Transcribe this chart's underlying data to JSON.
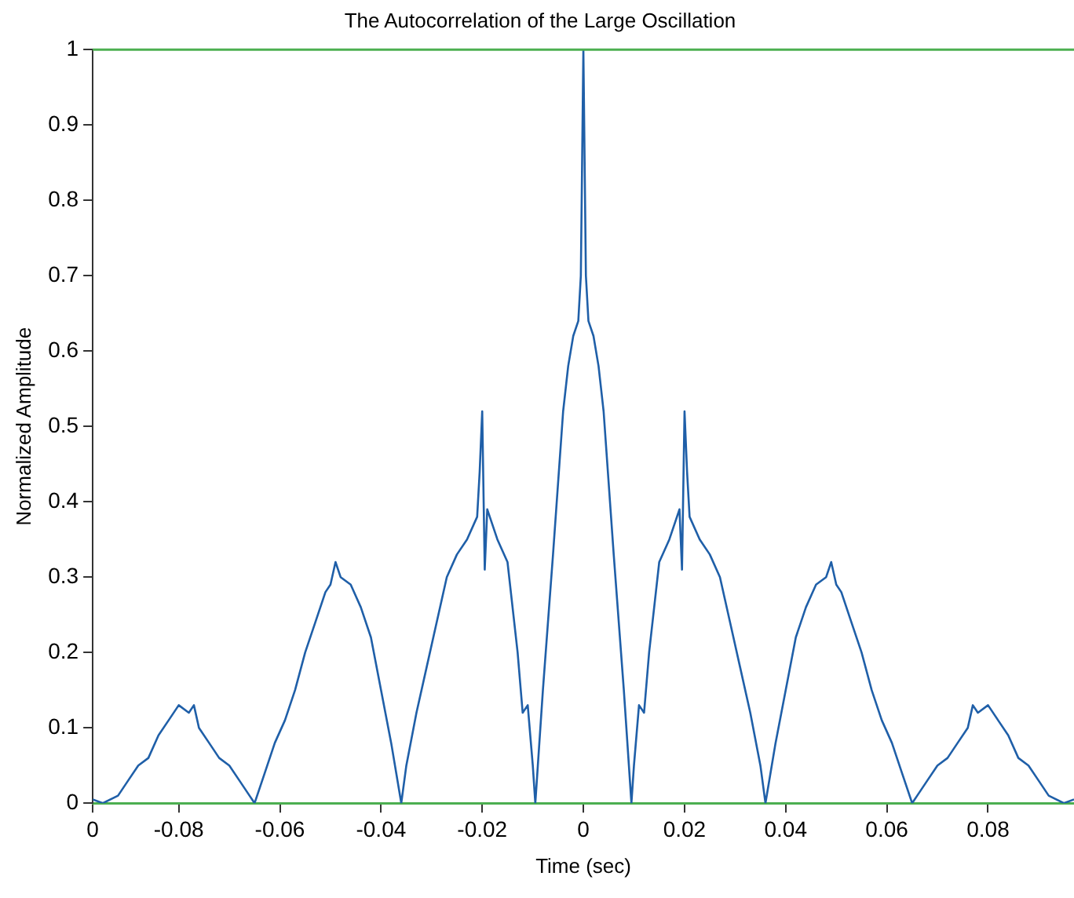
{
  "chart_data": {
    "type": "line",
    "title": "The Autocorrelation of the Large Oscillation",
    "xlabel": "Time (sec)",
    "ylabel": "Normalized Amplitude",
    "x": [
      -0.097,
      -0.095,
      -0.092,
      -0.09,
      -0.088,
      -0.086,
      -0.084,
      -0.082,
      -0.08,
      -0.078,
      -0.077,
      -0.076,
      -0.074,
      -0.072,
      -0.07,
      -0.068,
      -0.066,
      -0.065,
      -0.063,
      -0.061,
      -0.059,
      -0.057,
      -0.055,
      -0.053,
      -0.051,
      -0.05,
      -0.049,
      -0.048,
      -0.046,
      -0.044,
      -0.042,
      -0.04,
      -0.038,
      -0.037,
      -0.036,
      -0.035,
      -0.033,
      -0.031,
      -0.029,
      -0.027,
      -0.025,
      -0.023,
      -0.021,
      -0.0205,
      -0.02,
      -0.0195,
      -0.019,
      -0.017,
      -0.015,
      -0.014,
      -0.013,
      -0.012,
      -0.011,
      -0.01,
      -0.0095,
      -0.009,
      -0.008,
      -0.006,
      -0.004,
      -0.003,
      -0.002,
      -0.001,
      -0.0005,
      0,
      0.0005,
      0.001,
      0.002,
      0.003,
      0.004,
      0.006,
      0.008,
      0.009,
      0.0095,
      0.01,
      0.011,
      0.012,
      0.013,
      0.014,
      0.015,
      0.017,
      0.019,
      0.0195,
      0.02,
      0.0205,
      0.021,
      0.023,
      0.025,
      0.027,
      0.029,
      0.031,
      0.033,
      0.035,
      0.036,
      0.037,
      0.038,
      0.04,
      0.042,
      0.044,
      0.046,
      0.048,
      0.049,
      0.05,
      0.051,
      0.053,
      0.055,
      0.057,
      0.059,
      0.061,
      0.063,
      0.065,
      0.066,
      0.068,
      0.07,
      0.072,
      0.074,
      0.076,
      0.077,
      0.078,
      0.08,
      0.082,
      0.084,
      0.086,
      0.088,
      0.09,
      0.092,
      0.095,
      0.097
    ],
    "series": [
      {
        "color": "#1f5fa8",
        "values": [
          0.005,
          0,
          0.01,
          0.03,
          0.05,
          0.06,
          0.09,
          0.11,
          0.13,
          0.12,
          0.13,
          0.1,
          0.08,
          0.06,
          0.05,
          0.03,
          0.01,
          0,
          0.04,
          0.08,
          0.11,
          0.15,
          0.2,
          0.24,
          0.28,
          0.29,
          0.32,
          0.3,
          0.29,
          0.26,
          0.22,
          0.15,
          0.08,
          0.04,
          0,
          0.05,
          0.12,
          0.18,
          0.24,
          0.3,
          0.33,
          0.35,
          0.38,
          0.44,
          0.52,
          0.31,
          0.39,
          0.35,
          0.32,
          0.26,
          0.2,
          0.12,
          0.13,
          0.05,
          0,
          0.05,
          0.15,
          0.33,
          0.52,
          0.58,
          0.62,
          0.64,
          0.7,
          1,
          0.7,
          0.64,
          0.62,
          0.58,
          0.52,
          0.33,
          0.15,
          0.05,
          0,
          0.05,
          0.13,
          0.12,
          0.2,
          0.26,
          0.32,
          0.35,
          0.39,
          0.31,
          0.52,
          0.44,
          0.38,
          0.35,
          0.33,
          0.3,
          0.24,
          0.18,
          0.12,
          0.05,
          0,
          0.04,
          0.08,
          0.15,
          0.22,
          0.26,
          0.29,
          0.3,
          0.32,
          0.29,
          0.28,
          0.24,
          0.2,
          0.15,
          0.11,
          0.08,
          0.04,
          0,
          0.01,
          0.03,
          0.05,
          0.06,
          0.08,
          0.1,
          0.13,
          0.12,
          0.13,
          0.11,
          0.09,
          0.06,
          0.05,
          0.03,
          0.01,
          0,
          0.005
        ]
      }
    ],
    "xlim": [
      -0.097,
      0.097
    ],
    "xticks": [
      {
        "value": -0.097,
        "label": "0"
      },
      -0.08,
      -0.06,
      -0.04,
      -0.02,
      0,
      0.02,
      0.04,
      0.06,
      0.08
    ],
    "ylim": [
      0,
      1
    ],
    "yticks": [
      0,
      0.1,
      0.2,
      0.3,
      0.4,
      0.5,
      0.6,
      0.7,
      0.8,
      0.9,
      1
    ],
    "ref_lines": [
      {
        "axis": "y",
        "value": 1,
        "color": "#4caf50"
      }
    ],
    "grid": false,
    "legend": false,
    "marker": "none",
    "line_style": "solid"
  }
}
